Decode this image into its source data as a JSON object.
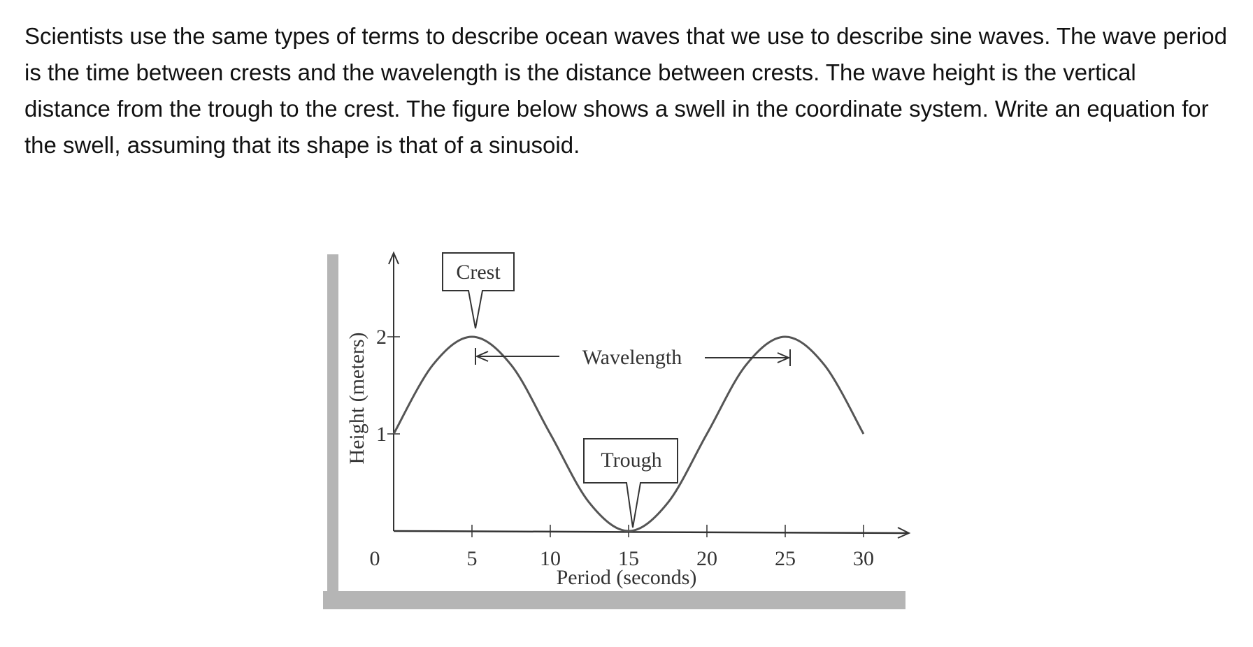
{
  "problem_text": "Scientists use the same types of terms to describe ocean waves that we use to describe sine waves. The wave period is the time between crests and the wavelength is the distance between crests. The wave height is the vertical distance from the trough to the crest. The figure below shows a swell in the coordinate system. Write an equation for the swell, assuming that its shape is that of a sinusoid.",
  "chart_data": {
    "type": "line",
    "xlabel": "Period (seconds)",
    "ylabel": "Height (meters)",
    "x_ticks": [
      "0",
      "5",
      "10",
      "15",
      "20",
      "25",
      "30"
    ],
    "y_ticks": [
      "1",
      "2"
    ],
    "xlim": [
      0,
      32
    ],
    "ylim": [
      0,
      2.8
    ],
    "grid": false,
    "x": [
      0,
      2.5,
      5,
      7.5,
      10,
      12.5,
      15,
      17.5,
      20,
      22.5,
      25,
      27.5,
      30
    ],
    "y": [
      1,
      1.71,
      2,
      1.71,
      1,
      0.29,
      0,
      0.29,
      1,
      1.71,
      2,
      1.71,
      1
    ],
    "annotations": {
      "crest": "Crest",
      "trough": "Trough",
      "wavelength": "Wavelength"
    },
    "colors": {
      "curve": "#555555",
      "axis": "#333333",
      "scan_border": "#b0b0b0"
    }
  }
}
